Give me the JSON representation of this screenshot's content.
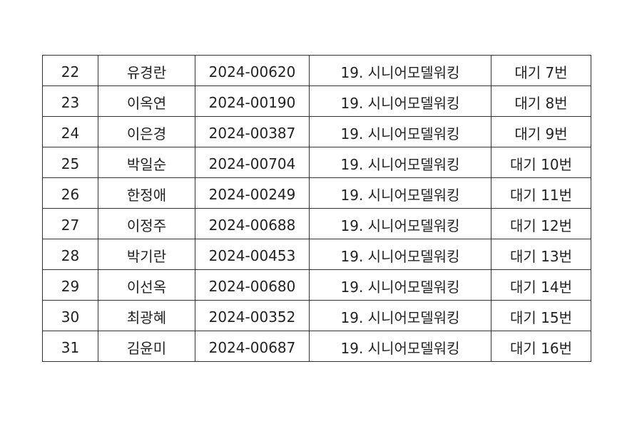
{
  "rows": [
    {
      "no": "22",
      "name": "유경란",
      "id": "2024-00620",
      "course": "19. 시니어모델워킹",
      "status": "대기 7번"
    },
    {
      "no": "23",
      "name": "이옥연",
      "id": "2024-00190",
      "course": "19. 시니어모델워킹",
      "status": "대기 8번"
    },
    {
      "no": "24",
      "name": "이은경",
      "id": "2024-00387",
      "course": "19. 시니어모델워킹",
      "status": "대기 9번"
    },
    {
      "no": "25",
      "name": "박일순",
      "id": "2024-00704",
      "course": "19. 시니어모델워킹",
      "status": "대기 10번"
    },
    {
      "no": "26",
      "name": "한정애",
      "id": "2024-00249",
      "course": "19. 시니어모델워킹",
      "status": "대기 11번"
    },
    {
      "no": "27",
      "name": "이정주",
      "id": "2024-00688",
      "course": "19. 시니어모델워킹",
      "status": "대기 12번"
    },
    {
      "no": "28",
      "name": "박기란",
      "id": "2024-00453",
      "course": "19. 시니어모델워킹",
      "status": "대기 13번"
    },
    {
      "no": "29",
      "name": "이선옥",
      "id": "2024-00680",
      "course": "19. 시니어모델워킹",
      "status": "대기 14번"
    },
    {
      "no": "30",
      "name": "최광혜",
      "id": "2024-00352",
      "course": "19. 시니어모델워킹",
      "status": "대기 15번"
    },
    {
      "no": "31",
      "name": "김윤미",
      "id": "2024-00687",
      "course": "19. 시니어모델워킹",
      "status": "대기 16번"
    }
  ]
}
